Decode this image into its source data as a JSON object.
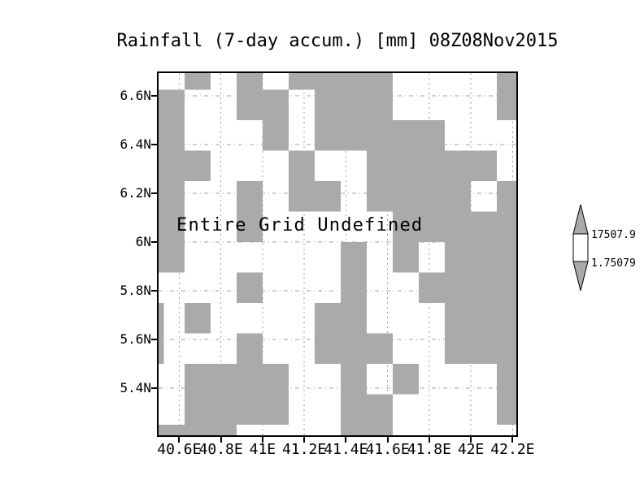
{
  "chart_data": {
    "type": "heatmap",
    "title": "Rainfall (7-day accum.) [mm] 08Z08Nov2015",
    "annotation": "Entire Grid Undefined",
    "xlabel": "",
    "ylabel": "",
    "lon_range": [
      40.501,
      42.218
    ],
    "lat_range": [
      5.206,
      6.6927
    ],
    "cell_size_deg": 0.125,
    "cell_origin": {
      "lon_start": 40.5,
      "lat_boundary_start": 6.625
    },
    "rows": 13,
    "cols": 14,
    "legend_note": "G = undefined/masked cell (gray), W = white cell",
    "cell_rows": [
      "WGWGWGGGGWWWWG",
      "GWWGGWGGGWWWWG",
      "GWWWGWGGGGGWWW",
      "GGWWWGWWGGGGGW",
      "GWWGWGGWGGGGWG",
      "GWWGWWWWWGGGGG",
      "GWWWWWWGWGWGGG",
      "WWWGWWWGWWGGGG",
      "WGWWWWGGWWWGGG",
      "WWWGWWGGGWWGGG",
      "WGGGGWWGWGWWWG",
      "WGGGGWWGGWWWWG",
      "GGGWWWWGGWWWWW"
    ],
    "left_edge_sliver_rows": [
      8,
      9
    ],
    "x_axis": {
      "ticks": [
        {
          "value": 40.6,
          "label": "40.6E"
        },
        {
          "value": 40.8,
          "label": "40.8E"
        },
        {
          "value": 41.0,
          "label": "41E"
        },
        {
          "value": 41.2,
          "label": "41.2E"
        },
        {
          "value": 41.4,
          "label": "41.4E"
        },
        {
          "value": 41.6,
          "label": "41.6E"
        },
        {
          "value": 41.8,
          "label": "41.8E"
        },
        {
          "value": 42.0,
          "label": "42E"
        },
        {
          "value": 42.2,
          "label": "42.2E"
        }
      ],
      "grid": true
    },
    "y_axis": {
      "ticks": [
        {
          "value": 6.6,
          "label": "6.6N"
        },
        {
          "value": 6.4,
          "label": "6.4N"
        },
        {
          "value": 6.2,
          "label": "6.2N"
        },
        {
          "value": 6.0,
          "label": "6N"
        },
        {
          "value": 5.8,
          "label": "5.8N"
        },
        {
          "value": 5.6,
          "label": "5.6N"
        },
        {
          "value": 5.4,
          "label": "5.4N"
        }
      ],
      "grid": true
    },
    "colorbar": {
      "max_label": "17507.9",
      "min_label": "1.75079",
      "shape": "vertical bar with up/down arrow caps"
    },
    "colors": {
      "cell_gray": "#aaaaaa",
      "gridline": "#a0a0a0",
      "frame": "#000000",
      "background": "#ffffff",
      "text": "#000000"
    }
  }
}
